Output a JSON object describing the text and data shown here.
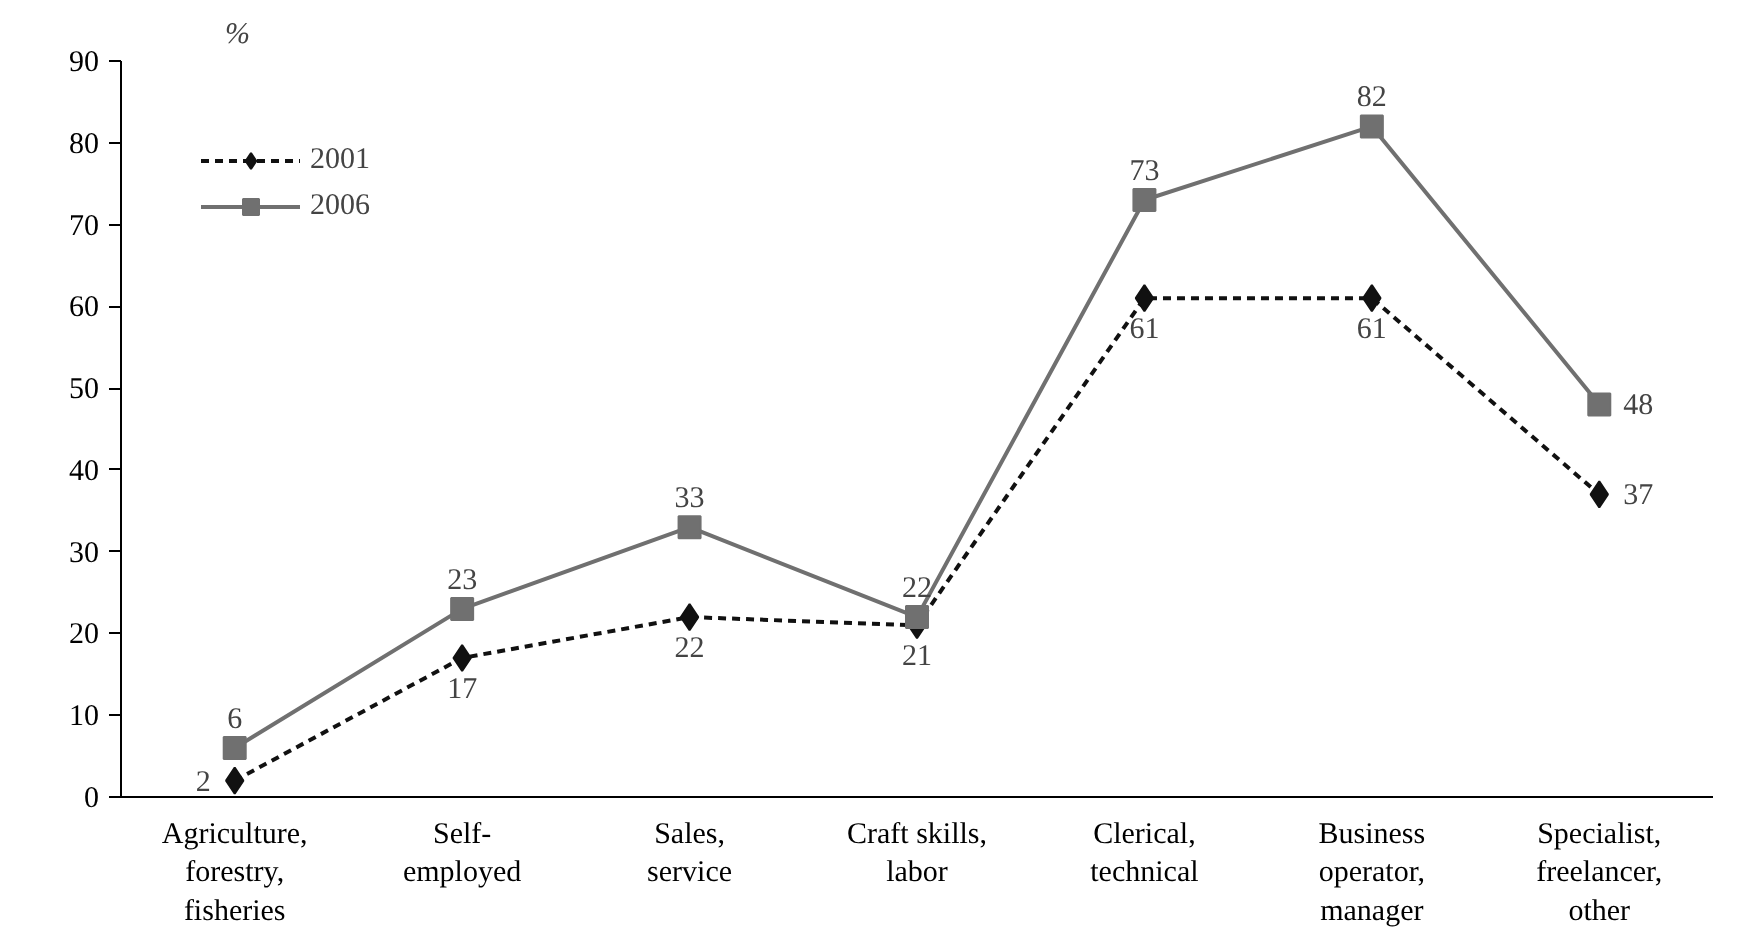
{
  "chart_data": {
    "type": "line",
    "ylabel": "%",
    "categories": [
      "Agriculture,\nforestry,\nfisheries",
      "Self-\nemployed",
      "Sales,\nservice",
      "Craft skills,\nlabor",
      "Clerical,\ntechnical",
      "Business\noperator,\nmanager",
      "Specialist,\nfreelancer,\nother"
    ],
    "series": [
      {
        "name": "2001",
        "color": "#111111",
        "marker": "diamond",
        "line_style": "dotted",
        "values": [
          2,
          17,
          22,
          21,
          61,
          61,
          37
        ]
      },
      {
        "name": "2006",
        "color": "#707070",
        "marker": "square",
        "line_style": "solid",
        "values": [
          6,
          23,
          33,
          22,
          73,
          82,
          48
        ]
      }
    ],
    "ylim": [
      0,
      90
    ],
    "yticks": [
      0,
      10,
      20,
      30,
      40,
      50,
      60,
      70,
      80,
      90
    ],
    "data_labels": true,
    "grid": false,
    "legend": "top left"
  }
}
